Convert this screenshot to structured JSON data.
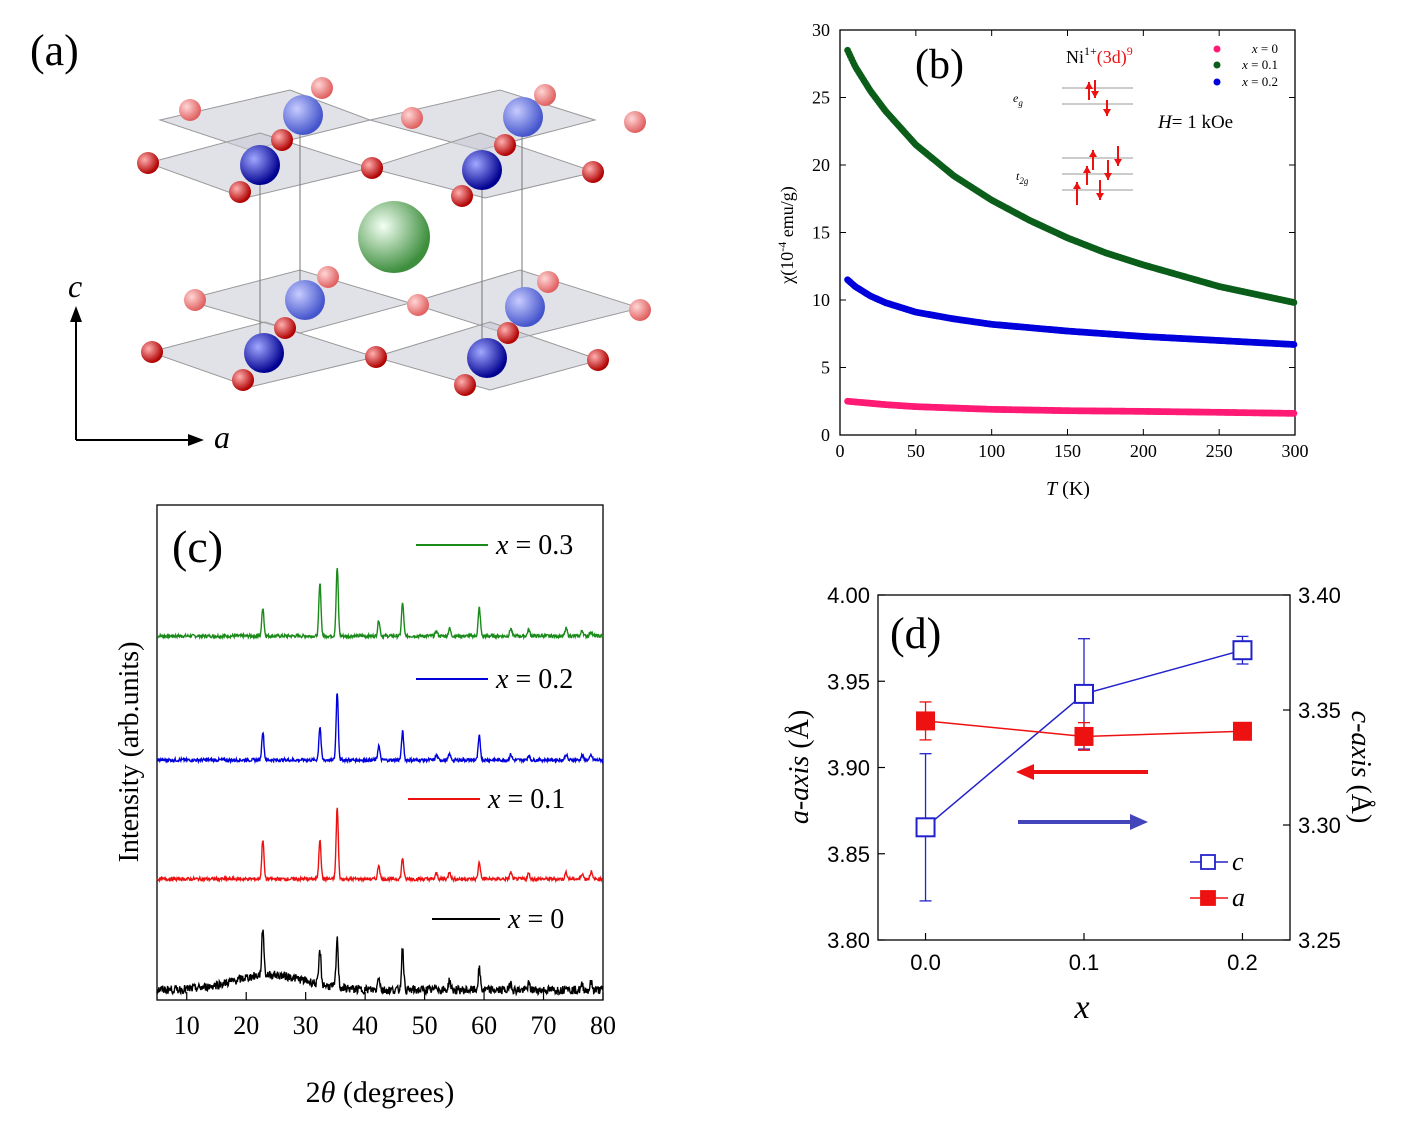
{
  "panels": {
    "a": {
      "label": "(a)",
      "axis_c": "c",
      "axis_a": "a"
    },
    "b": {
      "label": "(b)"
    },
    "c": {
      "label": "(c)"
    },
    "d": {
      "label": "(d)"
    }
  },
  "colors": {
    "x0": "#ff1a75",
    "x01": "#0b5e1a",
    "x02": "#0000dd",
    "x03": "#1a8a1a",
    "black": "#000000",
    "red": "#ee1111",
    "blue": "#2222cc"
  },
  "chart_data": [
    {
      "id": "b",
      "type": "line",
      "xlabel_italic": "T",
      "xlabel_unit": "(K)",
      "ylabel_main": "χ(10",
      "ylabel_sup": "-4",
      "ylabel_unit": " emu/g)",
      "xlim": [
        0,
        300
      ],
      "ylim": [
        0,
        30
      ],
      "xticks": [
        "0",
        "50",
        "100",
        "150",
        "200",
        "250",
        "300"
      ],
      "yticks": [
        "0",
        "5",
        "10",
        "15",
        "20",
        "25",
        "30"
      ],
      "field_italic": "H",
      "field_text": "= 1 kOe",
      "ion_text": "Ni",
      "ion_sup": "1+",
      "ion_conf": "(3d)",
      "ion_conf_sup": "9",
      "level_eg": "e",
      "level_eg_sub": "g",
      "level_t2g": "t",
      "level_t2g_sub": "2g",
      "series": [
        {
          "name": "x = 0",
          "legend_italic": "x",
          "legend_rest": " = 0",
          "color": "#ff1a75",
          "legend_color": "#ff1a75",
          "label_color": "#dd1111",
          "x": [
            5,
            10,
            20,
            30,
            50,
            75,
            100,
            150,
            200,
            250,
            300
          ],
          "y": [
            2.5,
            2.45,
            2.35,
            2.25,
            2.1,
            2.0,
            1.9,
            1.8,
            1.75,
            1.68,
            1.6
          ]
        },
        {
          "name": "x = 0.1",
          "legend_italic": "x",
          "legend_rest": " = 0.1",
          "color": "#0b5e1a",
          "legend_color": "#0b5e1a",
          "label_color": "#1a7a3a",
          "x": [
            5,
            10,
            20,
            30,
            50,
            75,
            100,
            125,
            150,
            175,
            200,
            225,
            250,
            275,
            300
          ],
          "y": [
            28.5,
            27.3,
            25.5,
            24.0,
            21.5,
            19.2,
            17.4,
            15.9,
            14.6,
            13.5,
            12.6,
            11.8,
            11.0,
            10.4,
            9.8
          ]
        },
        {
          "name": "x = 0.2",
          "legend_italic": "x",
          "legend_rest": " = 0.2",
          "color": "#0000dd",
          "legend_color": "#0000dd",
          "label_color": "#1a6ab0",
          "x": [
            5,
            10,
            20,
            30,
            50,
            75,
            100,
            150,
            200,
            250,
            300
          ],
          "y": [
            11.5,
            11.0,
            10.3,
            9.8,
            9.1,
            8.6,
            8.2,
            7.7,
            7.3,
            7.0,
            6.7
          ]
        }
      ]
    },
    {
      "id": "c",
      "type": "line",
      "xlabel_num": "2",
      "xlabel_theta": "θ",
      "xlabel_unit": " (degrees)",
      "ylabel": "Intensity (arb.units)",
      "xlim": [
        5,
        80
      ],
      "xticks": [
        "10",
        "20",
        "30",
        "40",
        "50",
        "60",
        "70",
        "80"
      ],
      "peaks": [
        22.8,
        32.4,
        35.3,
        42.3,
        46.3,
        52.0,
        54.2,
        59.2,
        64.5,
        67.5,
        73.8,
        76.5,
        78.0
      ],
      "series": [
        {
          "name": "x = 0.3",
          "legend_italic": "x",
          "legend_rest": " = 0.3",
          "color": "#1a8a1a",
          "heights": [
            0.3,
            0.55,
            0.72,
            0.17,
            0.35,
            0.05,
            0.08,
            0.3,
            0.08,
            0.07,
            0.08,
            0.06,
            0.05
          ]
        },
        {
          "name": "x = 0.2",
          "legend_italic": "x",
          "legend_rest": " = 0.2",
          "color": "#0000dd",
          "heights": [
            0.3,
            0.35,
            0.72,
            0.15,
            0.3,
            0.05,
            0.06,
            0.25,
            0.06,
            0.05,
            0.06,
            0.05,
            0.05
          ]
        },
        {
          "name": "x = 0.1",
          "legend_italic": "x",
          "legend_rest": " = 0.1",
          "color": "#ee1111",
          "heights": [
            0.42,
            0.42,
            0.75,
            0.15,
            0.22,
            0.06,
            0.08,
            0.18,
            0.07,
            0.06,
            0.07,
            0.06,
            0.08
          ]
        },
        {
          "name": "x = 0",
          "legend_italic": "x",
          "legend_rest": " = 0",
          "color": "#000000",
          "heights": [
            0.5,
            0.35,
            0.5,
            0.15,
            0.45,
            0.05,
            0.1,
            0.22,
            0.08,
            0.06,
            0.06,
            0.05,
            0.08
          ]
        }
      ]
    },
    {
      "id": "d",
      "type": "scatter",
      "xlabel": "x",
      "ylabel_left_italic": "a-axis",
      "ylabel_left_unit": " (Å)",
      "ylabel_right_italic": "c-axis",
      "ylabel_right_unit": " (Å)",
      "xlim": [
        -0.03,
        0.23
      ],
      "ylim_left": [
        3.8,
        4.0
      ],
      "ylim_right": [
        3.25,
        3.4
      ],
      "xticks": [
        "0.0",
        "0.1",
        "0.2"
      ],
      "xtick_values": [
        0,
        0.1,
        0.2
      ],
      "yticks_left": [
        "3.80",
        "3.85",
        "3.90",
        "3.95",
        "4.00"
      ],
      "yticks_right": [
        "3.25",
        "3.30",
        "3.35",
        "3.40"
      ],
      "series": [
        {
          "name": "c",
          "axis": "right",
          "marker": "open-square",
          "color": "#2222cc",
          "x": [
            0,
            0.1,
            0.2
          ],
          "y": [
            3.299,
            3.357,
            3.376
          ],
          "err": [
            0.032,
            0.024,
            0.006
          ]
        },
        {
          "name": "a",
          "axis": "left",
          "marker": "filled-square",
          "color": "#ee1111",
          "x": [
            0,
            0.1,
            0.2
          ],
          "y": [
            3.927,
            3.918,
            3.921
          ],
          "err": [
            0.011,
            0.008,
            0.004
          ]
        }
      ]
    }
  ]
}
